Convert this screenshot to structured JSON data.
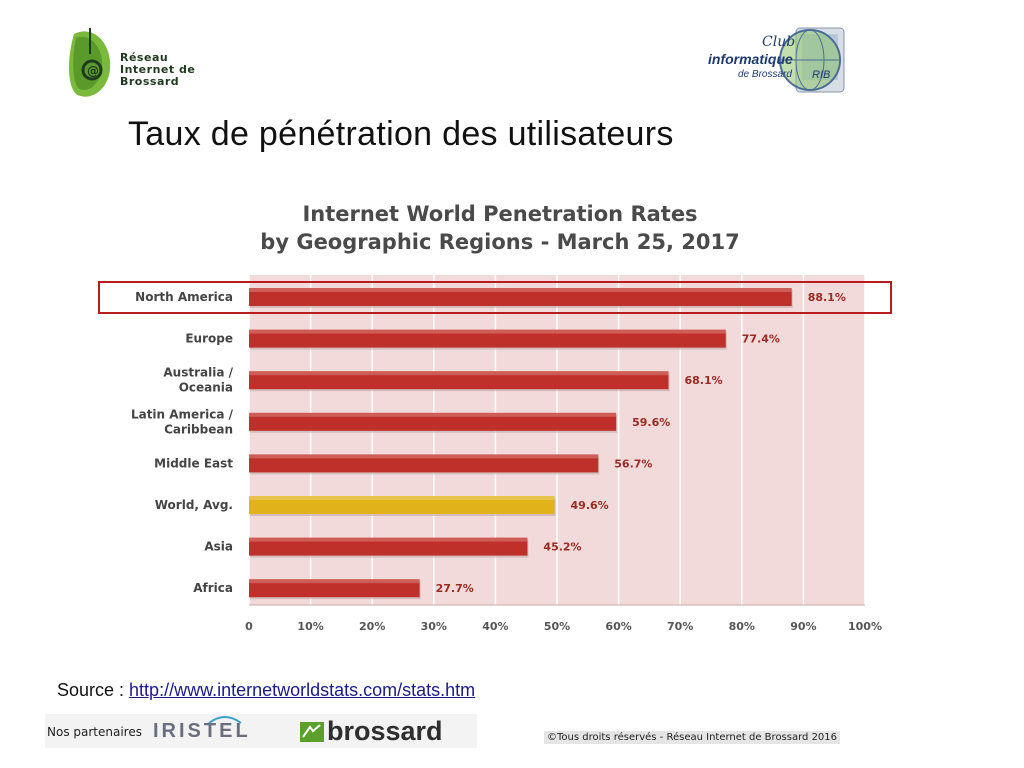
{
  "slide": {
    "title": "Taux de pénétration des utilisateurs",
    "source_label": "Source : ",
    "source_link": "http://www.internetworldstats.com/stats.htm"
  },
  "logos": {
    "left": {
      "line1": "Réseau",
      "line2": "Internet de",
      "line3": "Brossard"
    },
    "right": {
      "line1": "Club",
      "line2": "informatique",
      "line3": "de Brossard",
      "badge": "RIB"
    }
  },
  "footer": {
    "partners_label": "Nos partenaires",
    "partner1": "IRISTEL",
    "partner2": "brossard",
    "copyright": "©Tous droits réservés - Réseau Internet de Brossard 2016"
  },
  "chart_data": {
    "type": "bar",
    "orientation": "horizontal",
    "title_line1": "Internet World Penetration Rates",
    "title_line2": "by Geographic Regions - March 25, 2017",
    "categories": [
      [
        "North America"
      ],
      [
        "Europe"
      ],
      [
        "Australia /",
        "Oceania"
      ],
      [
        "Latin America /",
        "Caribbean"
      ],
      [
        "Middle East"
      ],
      [
        "World, Avg."
      ],
      [
        "Asia"
      ],
      [
        "Africa"
      ]
    ],
    "values": [
      88.1,
      77.4,
      68.1,
      59.6,
      56.7,
      49.6,
      45.2,
      27.7
    ],
    "value_labels": [
      "88.1%",
      "77.4%",
      "68.1%",
      "59.6%",
      "56.7%",
      "49.6%",
      "45.2%",
      "27.7%"
    ],
    "highlight_index": 5,
    "boxed_index": 0,
    "x_ticks": [
      0,
      10,
      20,
      30,
      40,
      50,
      60,
      70,
      80,
      90,
      100
    ],
    "x_tick_labels": [
      "0",
      "10%",
      "20%",
      "30%",
      "40%",
      "50%",
      "60%",
      "70%",
      "80%",
      "90%",
      "100%"
    ],
    "xlim": [
      0,
      100
    ],
    "grid": true,
    "colors": {
      "bar": "#c0302a",
      "highlight": "#e2b21a",
      "plot_bg": "#f3dada",
      "box": "#b81c1c",
      "grid": "#ffffff"
    }
  }
}
